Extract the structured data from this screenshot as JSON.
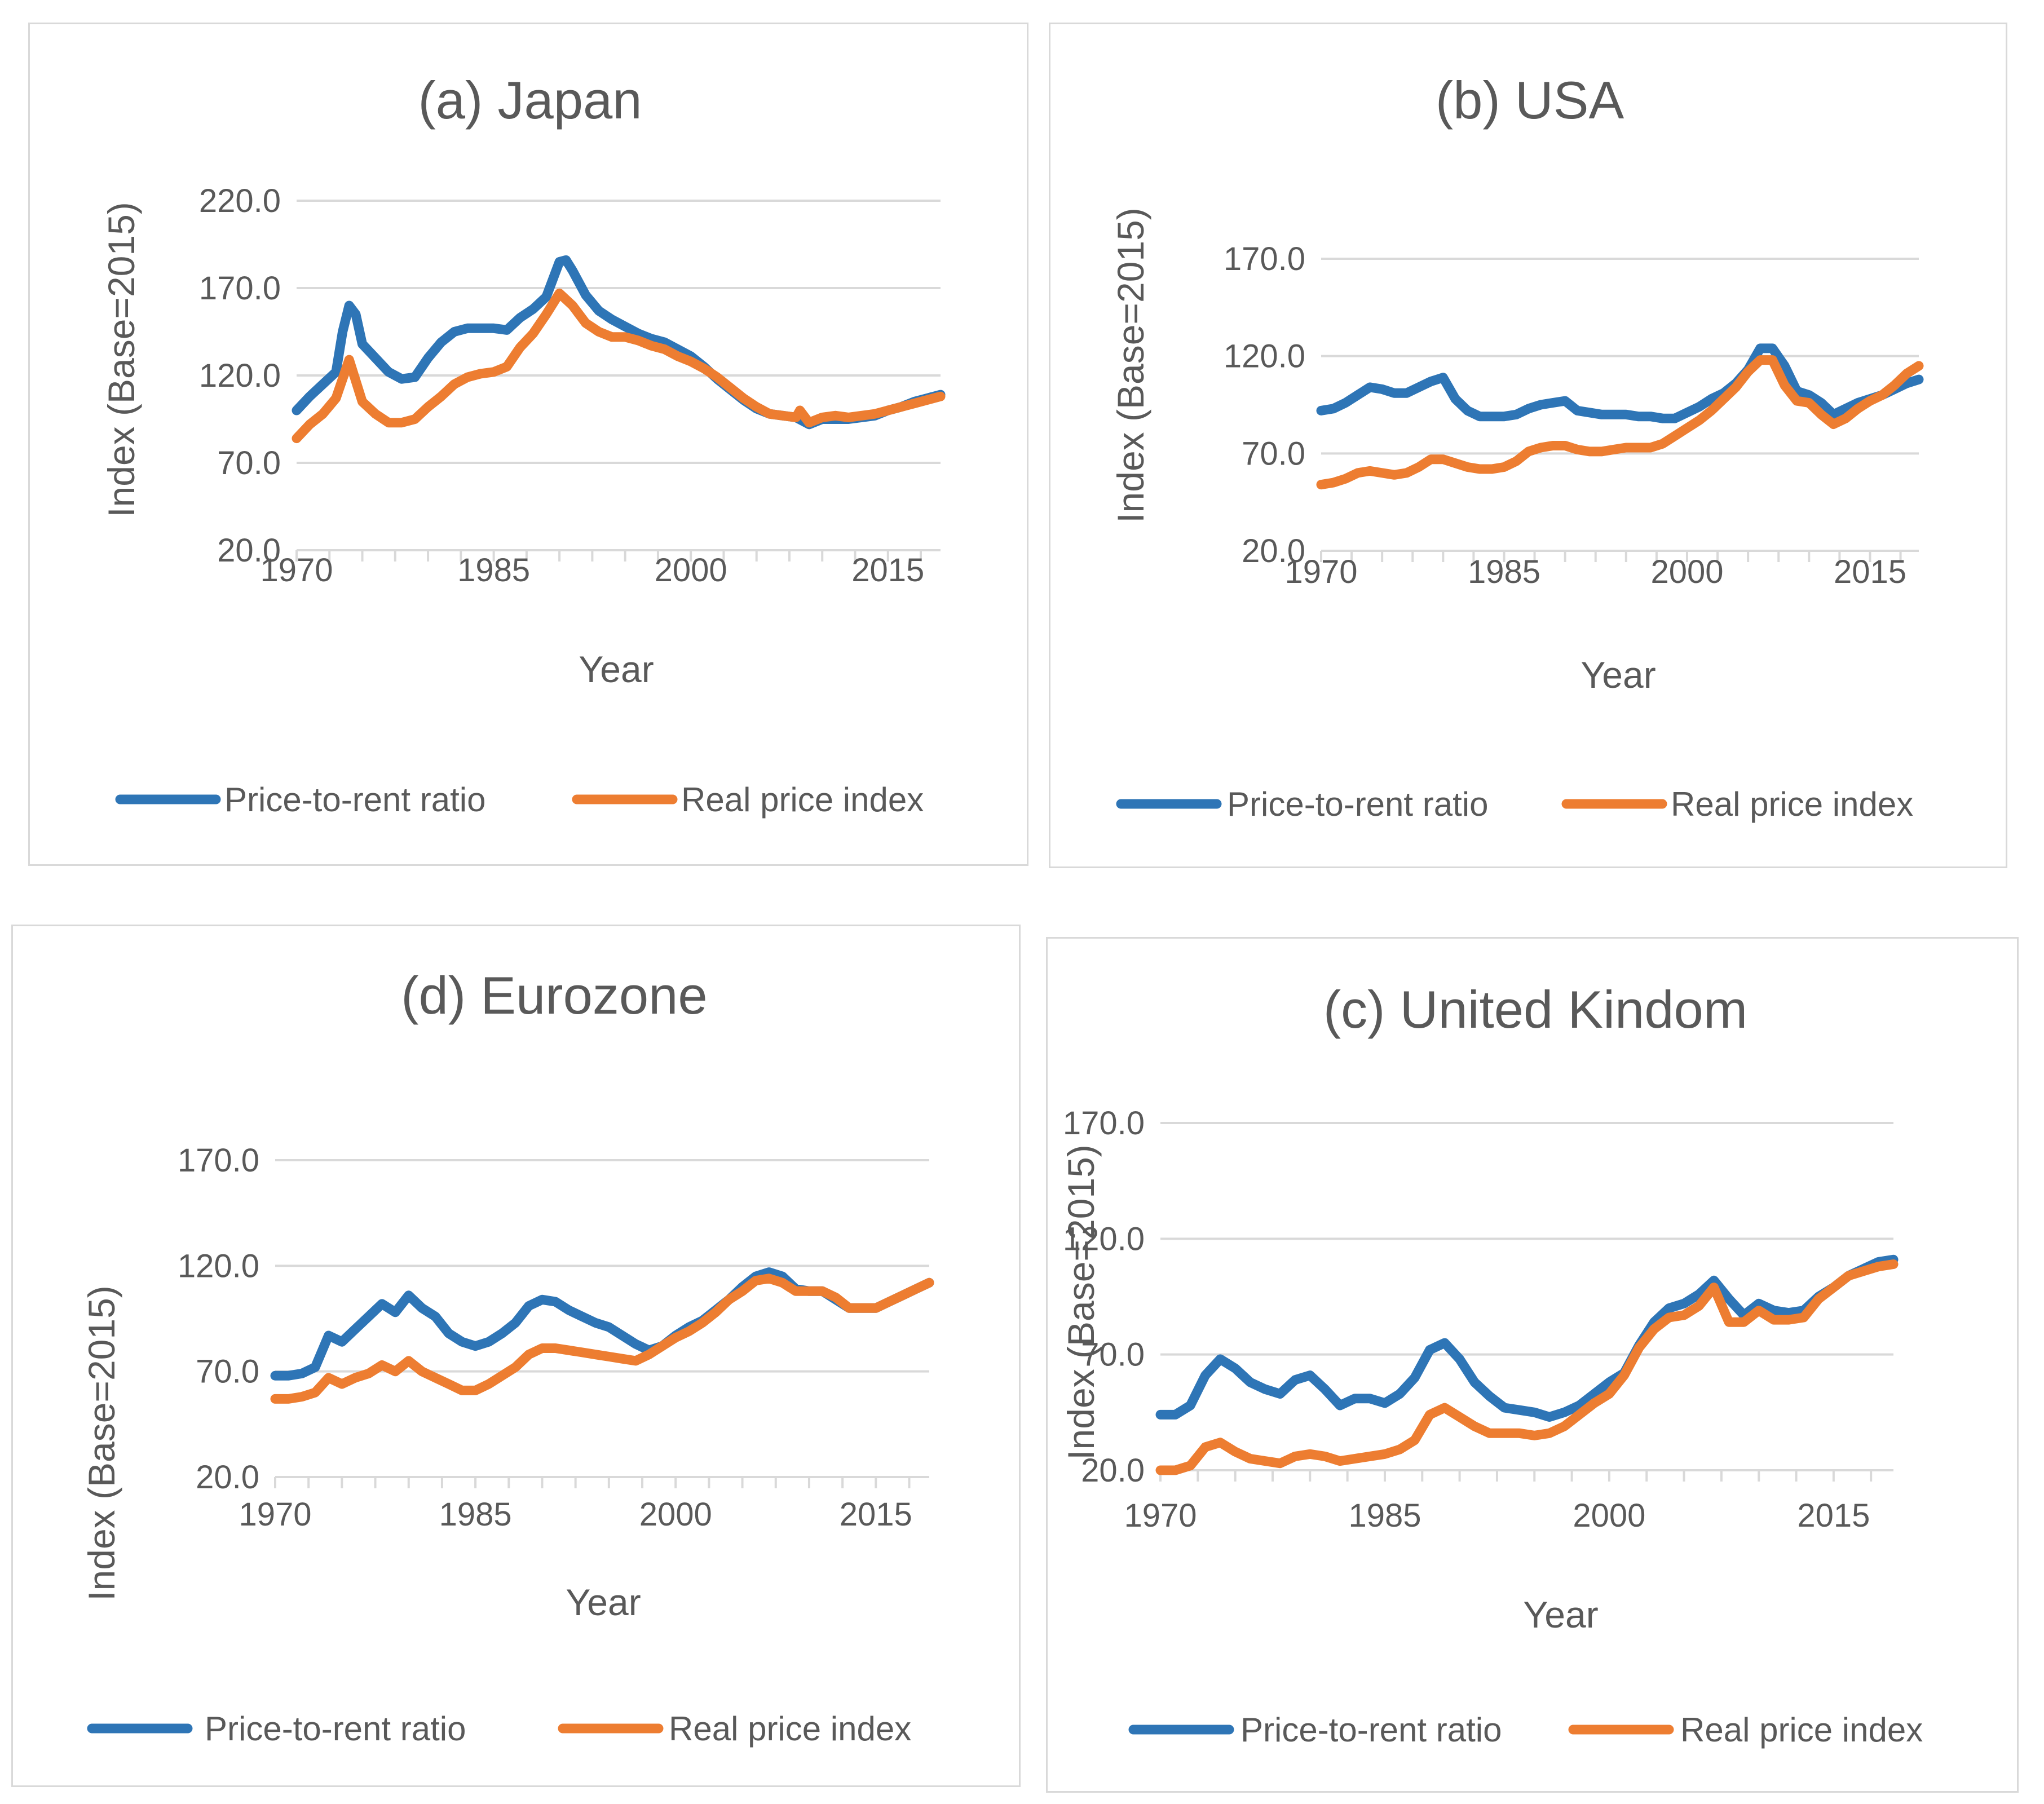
{
  "chart_data": [
    {
      "type": "line",
      "title": "(a) Japan",
      "xlabel": "Year",
      "ylabel": "Index (Base=2015)",
      "ylim": [
        20,
        220
      ],
      "yticks": [
        "220.0",
        "170.0",
        "120.0",
        "70.0",
        "20.0"
      ],
      "xlim": [
        1970,
        2019
      ],
      "xticks": [
        "1970",
        "1985",
        "2000",
        "2015"
      ],
      "legend": "bottom",
      "series": [
        {
          "name": "Price-to-rent ratio",
          "color": "#2e75b6",
          "x": [
            1970,
            1971,
            1972,
            1973,
            1973.5,
            1974,
            1974.5,
            1975,
            1976,
            1977,
            1978,
            1979,
            1980,
            1981,
            1982,
            1983,
            1984,
            1985,
            1986,
            1987,
            1988,
            1989,
            1990,
            1990.5,
            1991,
            1992,
            1993,
            1994,
            1995,
            1996,
            1997,
            1998,
            1999,
            2000,
            2001,
            2002,
            2003,
            2004,
            2005,
            2006,
            2007,
            2008,
            2009,
            2010,
            2011,
            2012,
            2013,
            2014,
            2015,
            2016,
            2017,
            2018,
            2019
          ],
          "y": [
            100,
            108,
            115,
            122,
            145,
            160,
            155,
            138,
            130,
            122,
            118,
            119,
            130,
            139,
            145,
            147,
            147,
            147,
            146,
            153,
            158,
            165,
            185,
            186,
            180,
            166,
            157,
            152,
            148,
            144,
            141,
            139,
            135,
            131,
            125,
            118,
            112,
            106,
            101,
            98,
            97,
            96,
            92,
            95,
            95,
            95,
            96,
            97,
            100,
            102,
            105,
            107,
            109
          ]
        },
        {
          "name": "Real price index",
          "color": "#ed7d31",
          "x": [
            1970,
            1971,
            1972,
            1973,
            1974,
            1975,
            1976,
            1977,
            1978,
            1979,
            1980,
            1981,
            1982,
            1983,
            1984,
            1985,
            1986,
            1987,
            1988,
            1989,
            1990,
            1991,
            1992,
            1993,
            1994,
            1995,
            1996,
            1997,
            1998,
            1999,
            2000,
            2001,
            2002,
            2003,
            2004,
            2005,
            2006,
            2007,
            2008,
            2008.3,
            2009,
            2010,
            2011,
            2012,
            2013,
            2014,
            2015,
            2016,
            2017,
            2018,
            2019
          ],
          "y": [
            84,
            92,
            98,
            107,
            129,
            105,
            98,
            93,
            93,
            95,
            102,
            108,
            115,
            119,
            121,
            122,
            125,
            136,
            144,
            155,
            167,
            160,
            150,
            145,
            142,
            142,
            140,
            137,
            135,
            131,
            128,
            124,
            119,
            113,
            107,
            102,
            98,
            97,
            96,
            100,
            93,
            96,
            97,
            96,
            97,
            98,
            100,
            102,
            104,
            106,
            108
          ]
        }
      ]
    },
    {
      "type": "line",
      "title": "(b) USA",
      "xlabel": "Year",
      "ylabel": "Index (Base=2015)",
      "ylim": [
        20,
        170
      ],
      "yticks": [
        "170.0",
        "120.0",
        "70.0",
        "20.0"
      ],
      "xlim": [
        1970,
        2019
      ],
      "xticks": [
        "1970",
        "1985",
        "2000",
        "2015"
      ],
      "legend": "bottom",
      "series": [
        {
          "name": "Price-to-rent ratio",
          "color": "#2e75b6",
          "x": [
            1970,
            1971,
            1972,
            1973,
            1974,
            1975,
            1976,
            1977,
            1978,
            1979,
            1980,
            1981,
            1982,
            1983,
            1984,
            1985,
            1986,
            1987,
            1988,
            1989,
            1990,
            1991,
            1992,
            1993,
            1994,
            1995,
            1996,
            1997,
            1998,
            1999,
            2000,
            2001,
            2002,
            2003,
            2004,
            2005,
            2006,
            2007,
            2008,
            2009,
            2010,
            2011,
            2012,
            2013,
            2014,
            2015,
            2016,
            2017,
            2018,
            2019
          ],
          "y": [
            92,
            93,
            96,
            100,
            104,
            103,
            101,
            101,
            104,
            107,
            109,
            98,
            92,
            89,
            89,
            89,
            90,
            93,
            95,
            96,
            97,
            92,
            91,
            90,
            90,
            90,
            89,
            89,
            88,
            88,
            91,
            94,
            98,
            101,
            106,
            113,
            124,
            124,
            115,
            102,
            100,
            96,
            90,
            93,
            96,
            98,
            100,
            103,
            106,
            108
          ]
        },
        {
          "name": "Real price index",
          "color": "#ed7d31",
          "x": [
            1970,
            1971,
            1972,
            1973,
            1974,
            1975,
            1976,
            1977,
            1978,
            1979,
            1980,
            1981,
            1982,
            1983,
            1984,
            1985,
            1986,
            1987,
            1988,
            1989,
            1990,
            1991,
            1992,
            1993,
            1994,
            1995,
            1996,
            1997,
            1998,
            1999,
            2000,
            2001,
            2002,
            2003,
            2004,
            2005,
            2006,
            2007,
            2008,
            2009,
            2010,
            2011,
            2012,
            2013,
            2014,
            2015,
            2016,
            2017,
            2018,
            2019
          ],
          "y": [
            54,
            55,
            57,
            60,
            61,
            60,
            59,
            60,
            63,
            67,
            67,
            65,
            63,
            62,
            62,
            63,
            66,
            71,
            73,
            74,
            74,
            72,
            71,
            71,
            72,
            73,
            73,
            73,
            75,
            79,
            83,
            87,
            92,
            98,
            104,
            112,
            118,
            118,
            105,
            97,
            96,
            90,
            85,
            88,
            93,
            97,
            100,
            105,
            111,
            115
          ]
        }
      ]
    },
    {
      "type": "line",
      "title": "(d) Eurozone",
      "xlabel": "Year",
      "ylabel": "Index (Base=2015)",
      "ylim": [
        20,
        170
      ],
      "yticks": [
        "170.0",
        "120.0",
        "70.0",
        "20.0"
      ],
      "xlim": [
        1970,
        2019
      ],
      "xticks": [
        "1970",
        "1985",
        "2000",
        "2015"
      ],
      "legend": "bottom",
      "series": [
        {
          "name": "Price-to-rent ratio",
          "color": "#2e75b6",
          "x": [
            1970,
            1971,
            1972,
            1973,
            1974,
            1975,
            1976,
            1977,
            1978,
            1979,
            1980,
            1981,
            1982,
            1983,
            1984,
            1985,
            1986,
            1987,
            1988,
            1989,
            1990,
            1991,
            1992,
            1993,
            1994,
            1995,
            1996,
            1997,
            1998,
            1999,
            2000,
            2001,
            2002,
            2003,
            2004,
            2005,
            2006,
            2007,
            2008,
            2009,
            2010,
            2011,
            2012,
            2013,
            2014,
            2015,
            2016,
            2017,
            2018,
            2019
          ],
          "y": [
            68,
            68,
            69,
            72,
            87,
            84,
            90,
            96,
            102,
            98,
            106,
            100,
            96,
            88,
            84,
            82,
            84,
            88,
            93,
            101,
            104,
            103,
            99,
            96,
            93,
            91,
            87,
            83,
            80,
            82,
            87,
            91,
            94,
            99,
            104,
            110,
            115,
            117,
            115,
            109,
            108,
            108,
            104,
            100,
            100,
            100,
            103,
            106,
            109,
            112
          ]
        },
        {
          "name": "Real price index",
          "color": "#ed7d31",
          "x": [
            1970,
            1971,
            1972,
            1973,
            1974,
            1975,
            1976,
            1977,
            1978,
            1979,
            1980,
            1981,
            1982,
            1983,
            1984,
            1985,
            1986,
            1987,
            1988,
            1989,
            1990,
            1991,
            1992,
            1993,
            1994,
            1995,
            1996,
            1997,
            1998,
            1999,
            2000,
            2001,
            2002,
            2003,
            2004,
            2005,
            2006,
            2007,
            2008,
            2009,
            2010,
            2011,
            2012,
            2013,
            2014,
            2015,
            2016,
            2017,
            2018,
            2019
          ],
          "y": [
            57,
            57,
            58,
            60,
            67,
            64,
            67,
            69,
            73,
            70,
            75,
            70,
            67,
            64,
            61,
            61,
            64,
            68,
            72,
            78,
            81,
            81,
            80,
            79,
            78,
            77,
            76,
            75,
            78,
            82,
            86,
            89,
            93,
            98,
            104,
            108,
            113,
            114,
            112,
            108,
            108,
            108,
            105,
            100,
            100,
            100,
            103,
            106,
            109,
            112
          ]
        }
      ]
    },
    {
      "type": "line",
      "title": "(c) United Kindom",
      "xlabel": "Year",
      "ylabel": "Index (Base=2015)",
      "ylim": [
        20,
        170
      ],
      "yticks": [
        "170.0",
        "120.0",
        "70.0",
        "20.0"
      ],
      "xlim": [
        1970,
        2019
      ],
      "xticks": [
        "1970",
        "1985",
        "2000",
        "2015"
      ],
      "legend": "bottom",
      "series": [
        {
          "name": "Price-to-rent ratio",
          "color": "#2e75b6",
          "x": [
            1970,
            1971,
            1972,
            1973,
            1974,
            1975,
            1976,
            1977,
            1978,
            1979,
            1980,
            1981,
            1982,
            1983,
            1984,
            1985,
            1986,
            1987,
            1988,
            1989,
            1990,
            1991,
            1992,
            1993,
            1994,
            1995,
            1996,
            1997,
            1998,
            1999,
            2000,
            2001,
            2002,
            2003,
            2004,
            2005,
            2006,
            2007,
            2008,
            2009,
            2010,
            2011,
            2012,
            2013,
            2014,
            2015,
            2016,
            2017,
            2018,
            2019
          ],
          "y": [
            44,
            44,
            48,
            61,
            68,
            64,
            58,
            55,
            53,
            59,
            61,
            55,
            48,
            51,
            51,
            49,
            53,
            60,
            72,
            75,
            68,
            58,
            52,
            47,
            46,
            45,
            43,
            45,
            48,
            53,
            58,
            62,
            74,
            84,
            90,
            92,
            96,
            102,
            94,
            87,
            92,
            89,
            88,
            89,
            95,
            99,
            104,
            107,
            110,
            111
          ]
        },
        {
          "name": "Real price index",
          "color": "#ed7d31",
          "x": [
            1970,
            1971,
            1972,
            1973,
            1974,
            1975,
            1976,
            1977,
            1978,
            1979,
            1980,
            1981,
            1982,
            1983,
            1984,
            1985,
            1986,
            1987,
            1988,
            1989,
            1990,
            1991,
            1992,
            1993,
            1994,
            1995,
            1996,
            1997,
            1998,
            1999,
            2000,
            2001,
            2002,
            2003,
            2004,
            2005,
            2006,
            2007,
            2008,
            2009,
            2010,
            2011,
            2012,
            2013,
            2014,
            2015,
            2016,
            2017,
            2018,
            2019
          ],
          "y": [
            20,
            20,
            22,
            30,
            32,
            28,
            25,
            24,
            23,
            26,
            27,
            26,
            24,
            25,
            26,
            27,
            29,
            33,
            44,
            47,
            43,
            39,
            36,
            36,
            36,
            35,
            36,
            39,
            44,
            49,
            53,
            61,
            73,
            81,
            86,
            87,
            91,
            99,
            84,
            84,
            89,
            85,
            85,
            86,
            94,
            99,
            104,
            106,
            108,
            109
          ]
        }
      ]
    }
  ]
}
